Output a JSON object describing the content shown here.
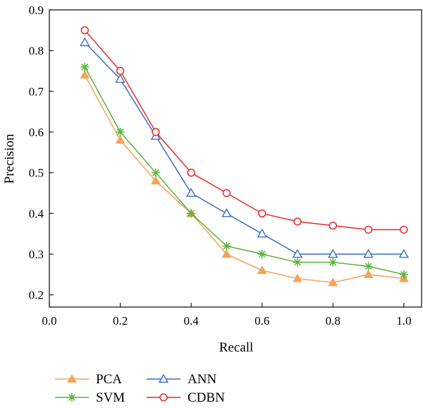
{
  "chart_data": {
    "type": "line",
    "xlabel": "Recall",
    "ylabel": "Precision",
    "xlim": [
      0.0,
      1.05
    ],
    "ylim": [
      0.17,
      0.9
    ],
    "xticks": [
      "0.0",
      "0.2",
      "0.4",
      "0.6",
      "0.8",
      "1.0"
    ],
    "yticks": [
      "0.2",
      "0.3",
      "0.4",
      "0.5",
      "0.6",
      "0.7",
      "0.8",
      "0.9"
    ],
    "grid": false,
    "legend_position": "bottom-left, below plot",
    "x": [
      0.1,
      0.2,
      0.3,
      0.4,
      0.5,
      0.6,
      0.7,
      0.8,
      0.9,
      1.0
    ],
    "series": [
      {
        "name": "PCA",
        "marker": "filled-triangle",
        "color": "#f5a25a",
        "values": [
          0.74,
          0.58,
          0.48,
          0.4,
          0.3,
          0.26,
          0.24,
          0.23,
          0.25,
          0.24
        ]
      },
      {
        "name": "SVM",
        "marker": "asterisk",
        "color": "#5ab33a",
        "values": [
          0.76,
          0.6,
          0.5,
          0.4,
          0.32,
          0.3,
          0.28,
          0.28,
          0.27,
          0.25
        ]
      },
      {
        "name": "ANN",
        "marker": "open-triangle",
        "color": "#3a6fc4",
        "values": [
          0.82,
          0.73,
          0.59,
          0.45,
          0.4,
          0.35,
          0.3,
          0.3,
          0.3,
          0.3
        ]
      },
      {
        "name": "CDBN",
        "marker": "open-circle",
        "color": "#e8282a",
        "values": [
          0.85,
          0.75,
          0.6,
          0.5,
          0.45,
          0.4,
          0.38,
          0.37,
          0.36,
          0.36
        ]
      }
    ]
  }
}
